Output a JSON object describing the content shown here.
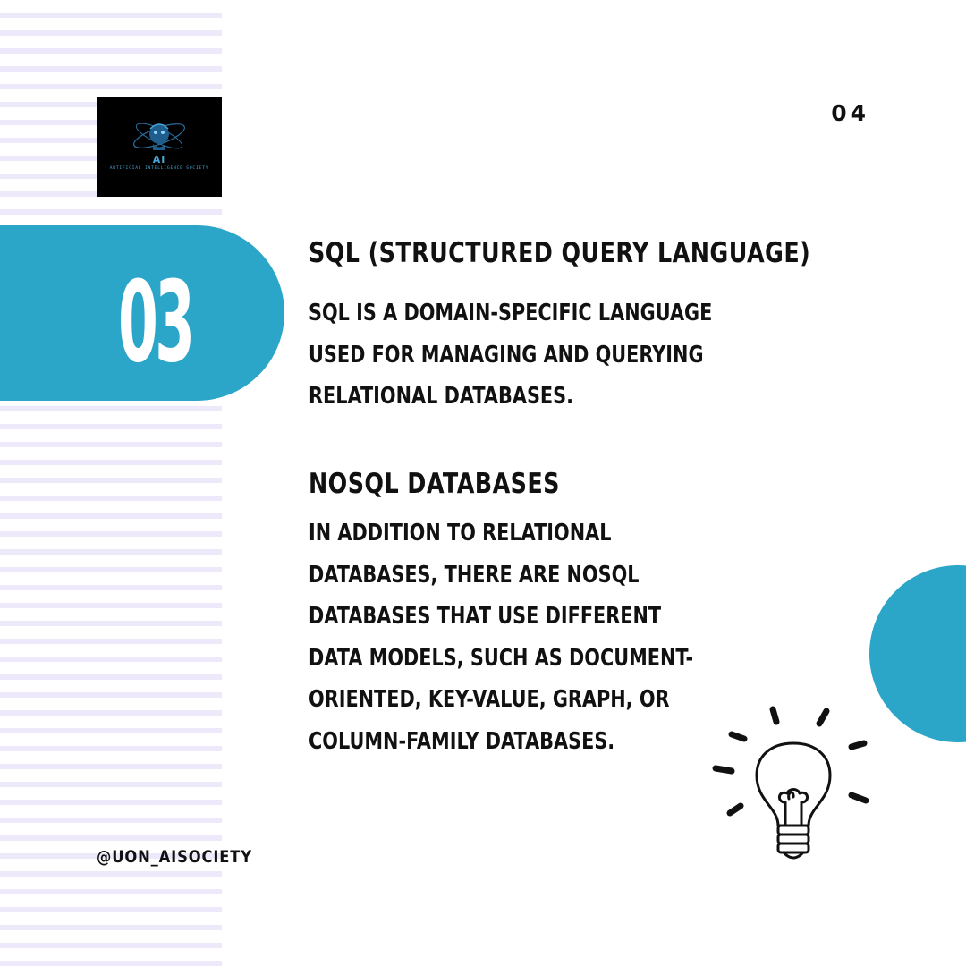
{
  "logo": {
    "initials": "AI",
    "subtitle": "ARTIFICIAL INTELLIGENCE SOCIETY"
  },
  "page_number": "04",
  "slide_number": "03",
  "sections": [
    {
      "heading": "SQL (Structured Query Language)",
      "body": "SQL is a domain-specific language\nused for managing and querying\nrelational databases."
    },
    {
      "heading": "NoSQL Databases",
      "body": "In addition to relational\ndatabases, there are NoSQL\ndatabases that use different\ndata models, such as document-\noriented, key-value, graph, or\ncolumn-family databases."
    }
  ],
  "handle": "@uon_aisociety",
  "icons": [
    "lightbulb-icon",
    "ai-society-logo"
  ],
  "colors": {
    "accent": "#2ba6c8",
    "text": "#111111",
    "stripe": "#eee8fb",
    "logo_background": "#000000",
    "logo_text": "#4aa8d8"
  }
}
